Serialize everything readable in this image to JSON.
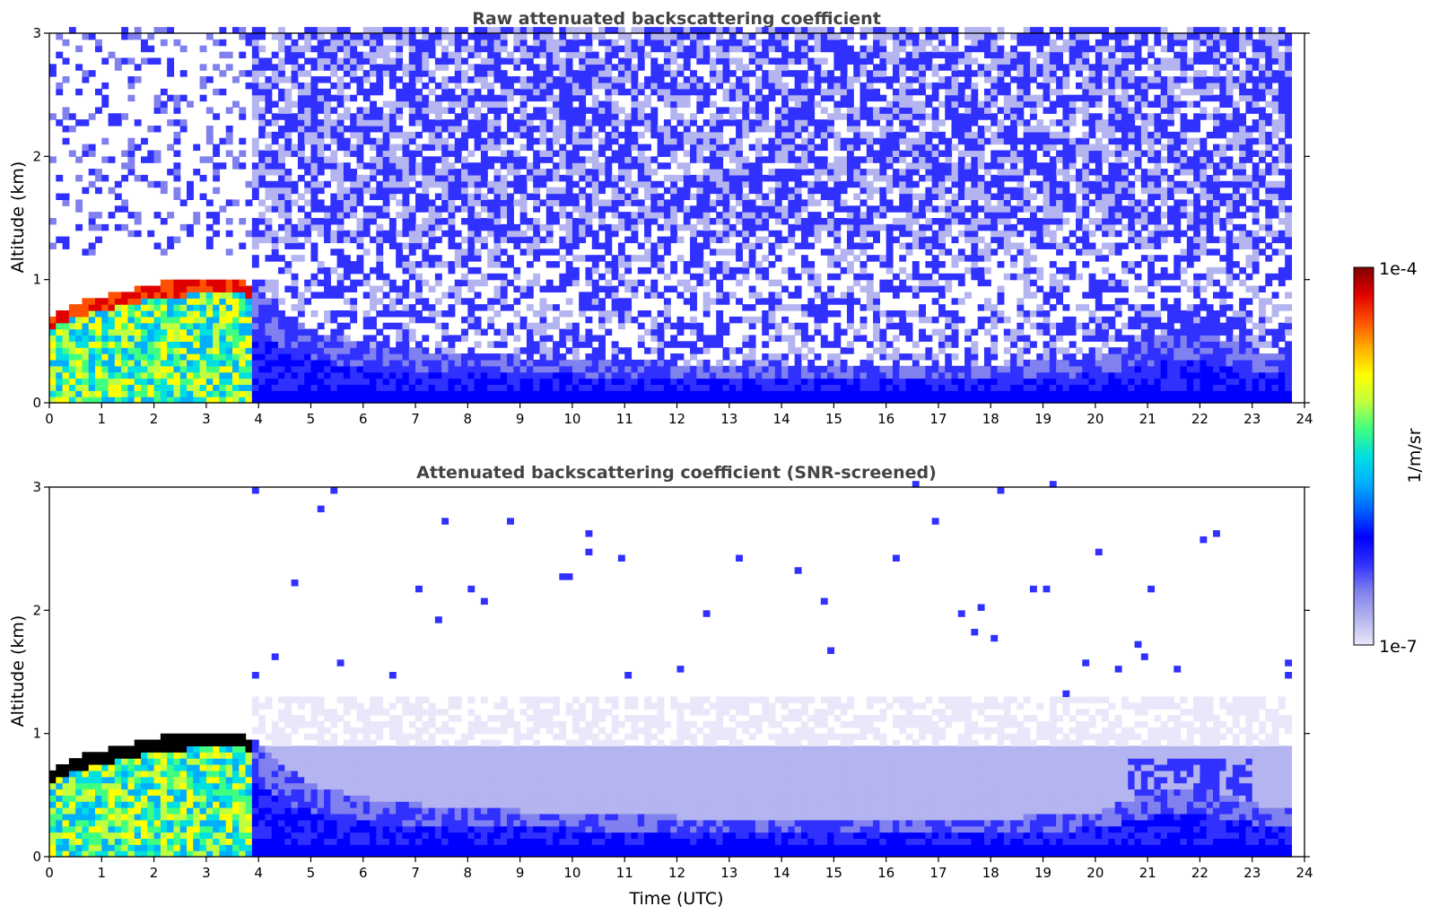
{
  "chart_data": [
    {
      "type": "heatmap",
      "title": "Raw attenuated backscattering coefficient",
      "xlabel": "",
      "ylabel": "Altitude (km)",
      "xlim": [
        0,
        24
      ],
      "ylim": [
        0,
        3
      ],
      "x_ticks": [
        0,
        1,
        2,
        3,
        4,
        5,
        6,
        7,
        8,
        9,
        10,
        11,
        12,
        13,
        14,
        15,
        16,
        17,
        18,
        19,
        20,
        21,
        22,
        23,
        24
      ],
      "y_ticks": [
        0,
        1,
        2,
        3
      ],
      "data_end_time": 23.75,
      "features": {
        "boundary_layer_top_km": [
          [
            0,
            0.7
          ],
          [
            0.5,
            0.8
          ],
          [
            1,
            0.85
          ],
          [
            1.5,
            0.9
          ],
          [
            2,
            0.95
          ],
          [
            2.5,
            0.97
          ],
          [
            3,
            0.98
          ],
          [
            3.5,
            1.0
          ],
          [
            4,
            0.9
          ],
          [
            4.5,
            0.7
          ],
          [
            5,
            0.55
          ],
          [
            6,
            0.45
          ],
          [
            7,
            0.4
          ],
          [
            9,
            0.35
          ],
          [
            12,
            0.3
          ],
          [
            15,
            0.28
          ],
          [
            18,
            0.28
          ],
          [
            20,
            0.35
          ],
          [
            21,
            0.5
          ],
          [
            22,
            0.55
          ],
          [
            23,
            0.4
          ],
          [
            23.75,
            0.35
          ]
        ],
        "aerosol_layer_21_23h_km": [
          0.3,
          0.9
        ],
        "noise_region_km": [
          1.0,
          3.0
        ]
      },
      "grid": false
    },
    {
      "type": "heatmap",
      "title": "Attenuated backscattering coefficient (SNR-screened)",
      "xlabel": "Time (UTC)",
      "ylabel": "Altitude (km)",
      "xlim": [
        0,
        24
      ],
      "ylim": [
        0,
        3
      ],
      "x_ticks": [
        0,
        1,
        2,
        3,
        4,
        5,
        6,
        7,
        8,
        9,
        10,
        11,
        12,
        13,
        14,
        15,
        16,
        17,
        18,
        19,
        20,
        21,
        22,
        23,
        24
      ],
      "y_ticks": [
        0,
        1,
        2,
        3
      ],
      "data_end_time": 23.75,
      "features": {
        "screened_layer_top_km": 1.3,
        "saturated_cloud_top_km": [
          0.7,
          1.0
        ]
      },
      "grid": false
    }
  ],
  "colorbar": {
    "label": "1/m/sr",
    "max_label": "1e-4",
    "min_label": "1e-7",
    "vmin": 1e-07,
    "vmax": 0.0001,
    "scale": "log",
    "colormap_stops": [
      "#e8e8fa",
      "#b4b4f0",
      "#8080ee",
      "#3030ff",
      "#0000ff",
      "#0060ff",
      "#00b0ff",
      "#00e0e0",
      "#40ff80",
      "#c0ff40",
      "#ffff00",
      "#ffb000",
      "#ff5000",
      "#e00000",
      "#800000"
    ]
  }
}
